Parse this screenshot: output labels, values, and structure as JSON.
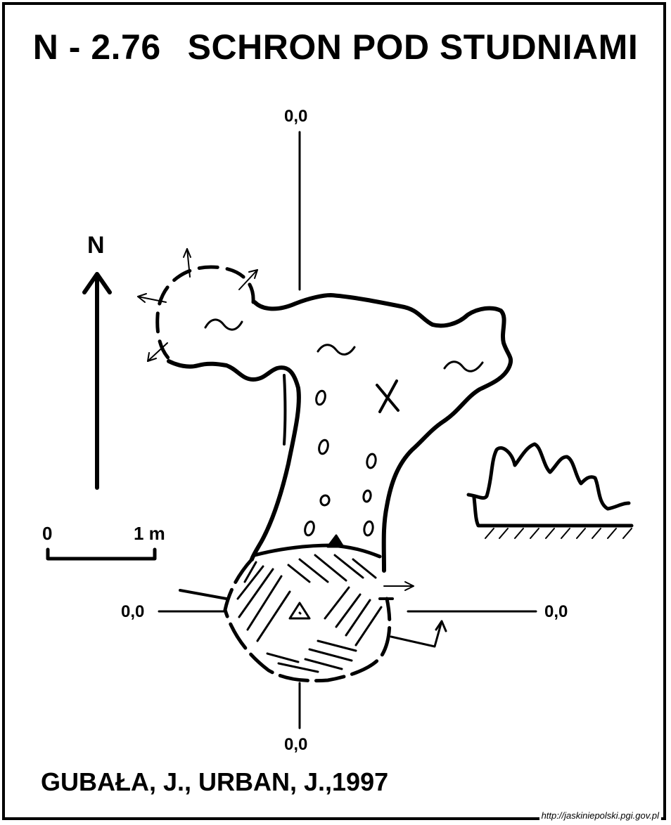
{
  "title": {
    "code": "N - 2.76",
    "name": "SCHRON POD STUDNIAMI"
  },
  "axis_labels": {
    "top": "0,0",
    "bottom": "0,0",
    "left": "0,0",
    "right": "0,0"
  },
  "north_arrow": {
    "label": "N",
    "icon": "north-arrow-icon"
  },
  "scale_bar": {
    "start_label": "0",
    "end_label": "1 m"
  },
  "authors": "GUBAŁA, J., URBAN, J.,1997",
  "source_url": "http://jaskiniepolski.pgi.gov.pl",
  "colors": {
    "ink": "#000000",
    "background": "#ffffff"
  }
}
